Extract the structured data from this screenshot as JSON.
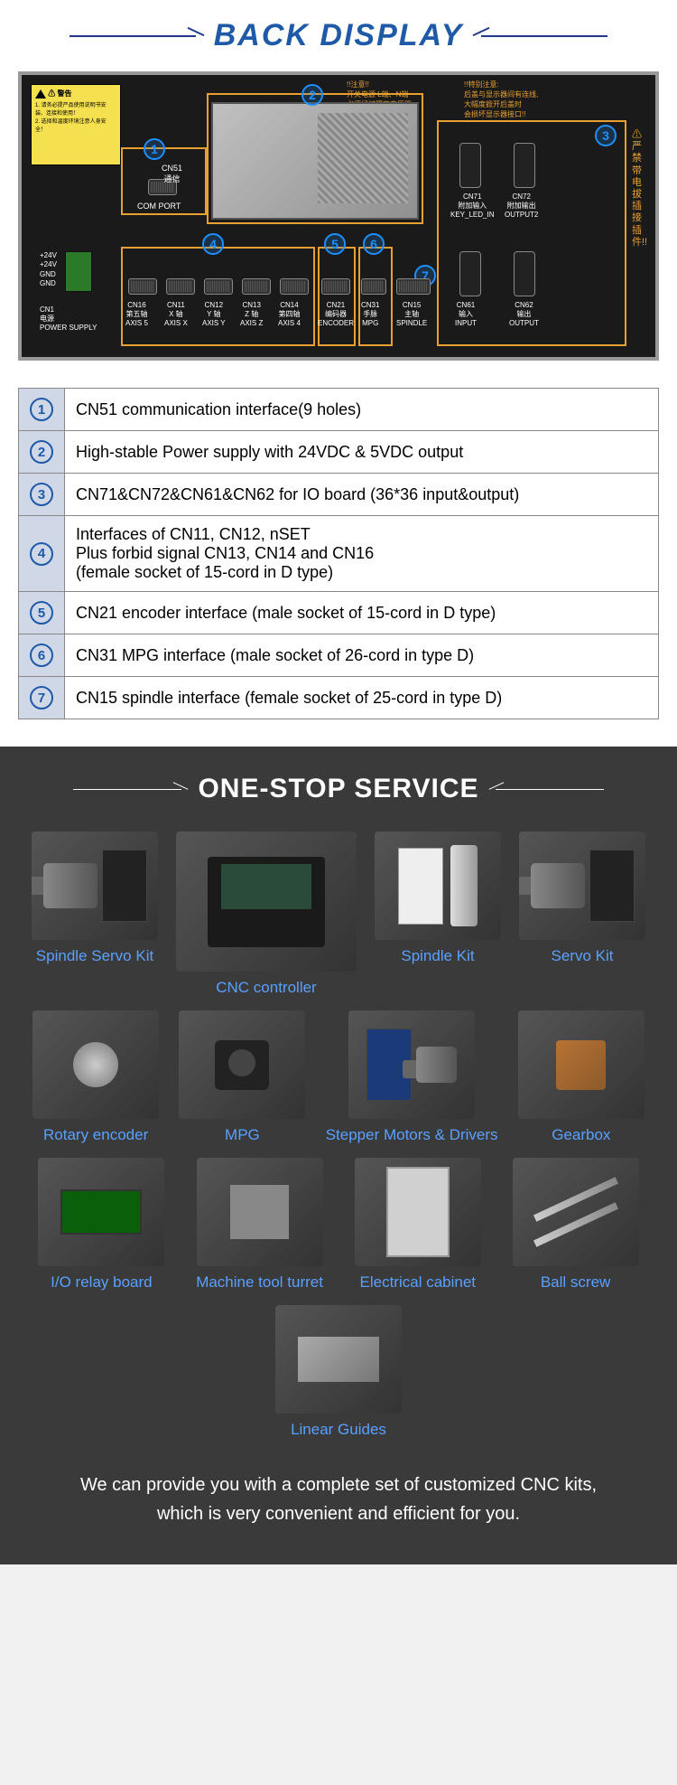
{
  "sections": {
    "back_display_title": "BACK DISPLAY",
    "service_title": "ONE-STOP SERVICE"
  },
  "panel": {
    "warning_title": "⚠ 警告",
    "warning_lines": "1. 请务必提严品使用说明书安装、连接和使用！\n2. 选择和温度环境注意人身安全！",
    "top_warning1": "!!注意!!\n开关电源 L端、N端\n必须经过隔离变压器\n输入AC 220V !!",
    "top_warning2": "!!特别注意:\n后盖与显示器间有连线,\n大幅度掀开后盖时\n会损坏显示器接口!!",
    "side_warning": "严禁带电拔插接插件!!",
    "labels": {
      "cn51": "CN51\n通信",
      "com_port": "COM PORT",
      "power": "+24V\n+24V\nGND\nGND",
      "cn1": "CN1\n电源\nPOWER SUPPLY",
      "cn16": "CN16\n第五轴\nAXIS 5",
      "cn11": "CN11\nX 轴\nAXIS X",
      "cn12": "CN12\nY 轴\nAXIS Y",
      "cn13": "CN13\nZ 轴\nAXIS Z",
      "cn14": "CN14\n第四轴\nAXIS 4",
      "cn21": "CN21\n编码器\nENCODER",
      "cn31": "CN31\n手脉\nMPG",
      "cn15": "CN15\n主轴\nSPINDLE",
      "cn71": "CN71\n附加输入\nKEY_LED_IN",
      "cn72": "CN72\n附加输出\nOUTPUT2",
      "cn61": "CN61\n输入\nINPUT",
      "cn62": "CN62\n输出\nOUTPUT"
    }
  },
  "table": [
    {
      "num": "1",
      "text": "CN51 communication interface(9 holes)"
    },
    {
      "num": "2",
      "text": "High-stable Power supply with 24VDC & 5VDC output"
    },
    {
      "num": "3",
      "text": "CN71&CN72&CN61&CN62 for IO board (36*36 input&output)"
    },
    {
      "num": "4",
      "text": "Interfaces of CN11, CN12, nSET\nPlus forbid signal CN13, CN14 and CN16\n(female socket of 15-cord in D type)"
    },
    {
      "num": "5",
      "text": "CN21 encoder interface (male socket of 15-cord in D type)"
    },
    {
      "num": "6",
      "text": "CN31 MPG interface (male socket of 26-cord in type D)"
    },
    {
      "num": "7",
      "text": "CN15 spindle interface (female socket of 25-cord in type D)"
    }
  ],
  "products": [
    {
      "label": "Spindle Servo Kit",
      "icon": "motor-driver"
    },
    {
      "label": "CNC controller",
      "icon": "controller",
      "wide": true
    },
    {
      "label": "Spindle Kit",
      "icon": "inverter-spindle"
    },
    {
      "label": "Servo Kit",
      "icon": "motor-driver"
    },
    {
      "label": "Rotary encoder",
      "icon": "encoder"
    },
    {
      "label": "MPG",
      "icon": "mpg"
    },
    {
      "label": "Stepper Motors & Drivers",
      "icon": "stepper"
    },
    {
      "label": "Gearbox",
      "icon": "gearbox"
    },
    {
      "label": "I/O  relay board",
      "icon": "relay"
    },
    {
      "label": "Machine tool turret",
      "icon": "turret"
    },
    {
      "label": "Electrical cabinet",
      "icon": "cabinet"
    },
    {
      "label": "Ball screw",
      "icon": "screw"
    },
    {
      "label": "Linear Guides",
      "icon": "rails"
    }
  ],
  "footer": "We can provide you with a complete set of customized CNC kits,\nwhich is very convenient and efficient for you.",
  "colors": {
    "title_blue": "#1e5aa8",
    "link_blue": "#5aa0ff",
    "marker_blue": "#1e90ff",
    "outline_orange": "#e8a030",
    "service_bg": "#3a3a3a"
  }
}
